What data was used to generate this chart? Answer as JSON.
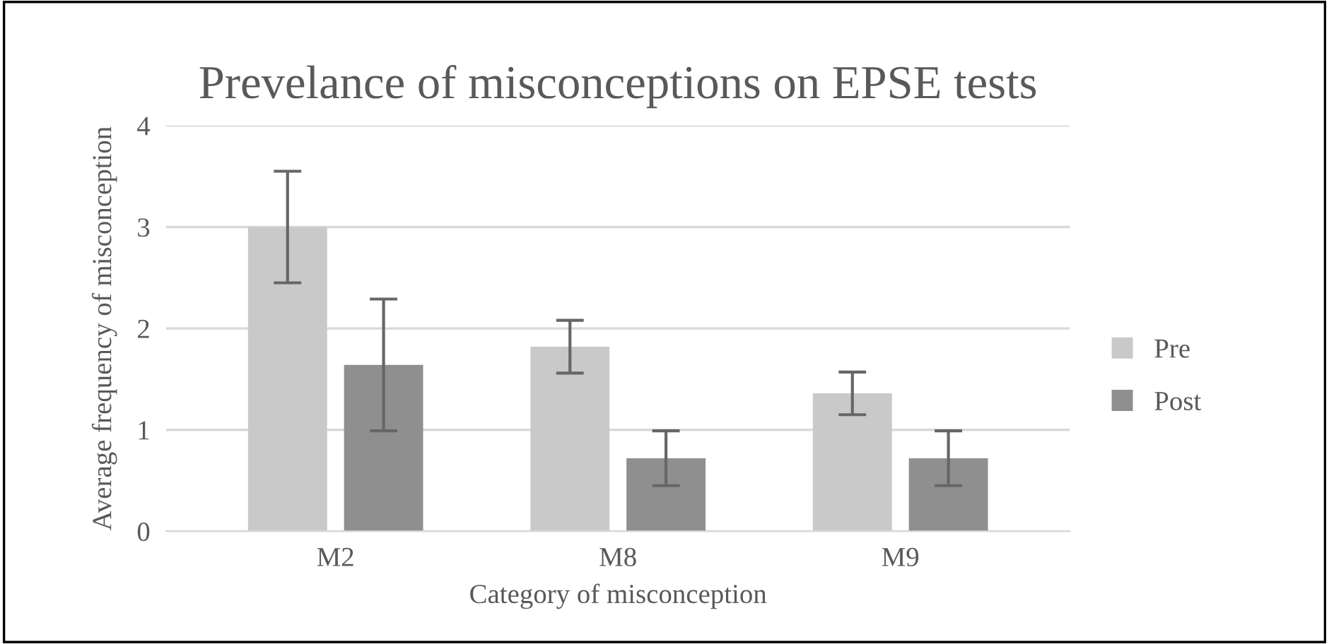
{
  "chart_data": {
    "type": "bar",
    "title": "Prevelance of misconceptions on EPSE tests",
    "xlabel": "Category of misconception",
    "ylabel": "Average frequency of misconception",
    "categories": [
      "M2",
      "M8",
      "M9"
    ],
    "series": [
      {
        "name": "Pre",
        "color": "#c9c9c9",
        "values": [
          3.0,
          1.82,
          1.36
        ],
        "errors": [
          0.55,
          0.26,
          0.21
        ]
      },
      {
        "name": "Post",
        "color": "#8f8f8f",
        "values": [
          1.64,
          0.72,
          0.72
        ],
        "errors": [
          0.65,
          0.27,
          0.27
        ]
      }
    ],
    "ylim": [
      0,
      4
    ],
    "yticks": [
      0,
      1,
      2,
      3,
      4
    ],
    "grid": "y",
    "legend": "right"
  }
}
